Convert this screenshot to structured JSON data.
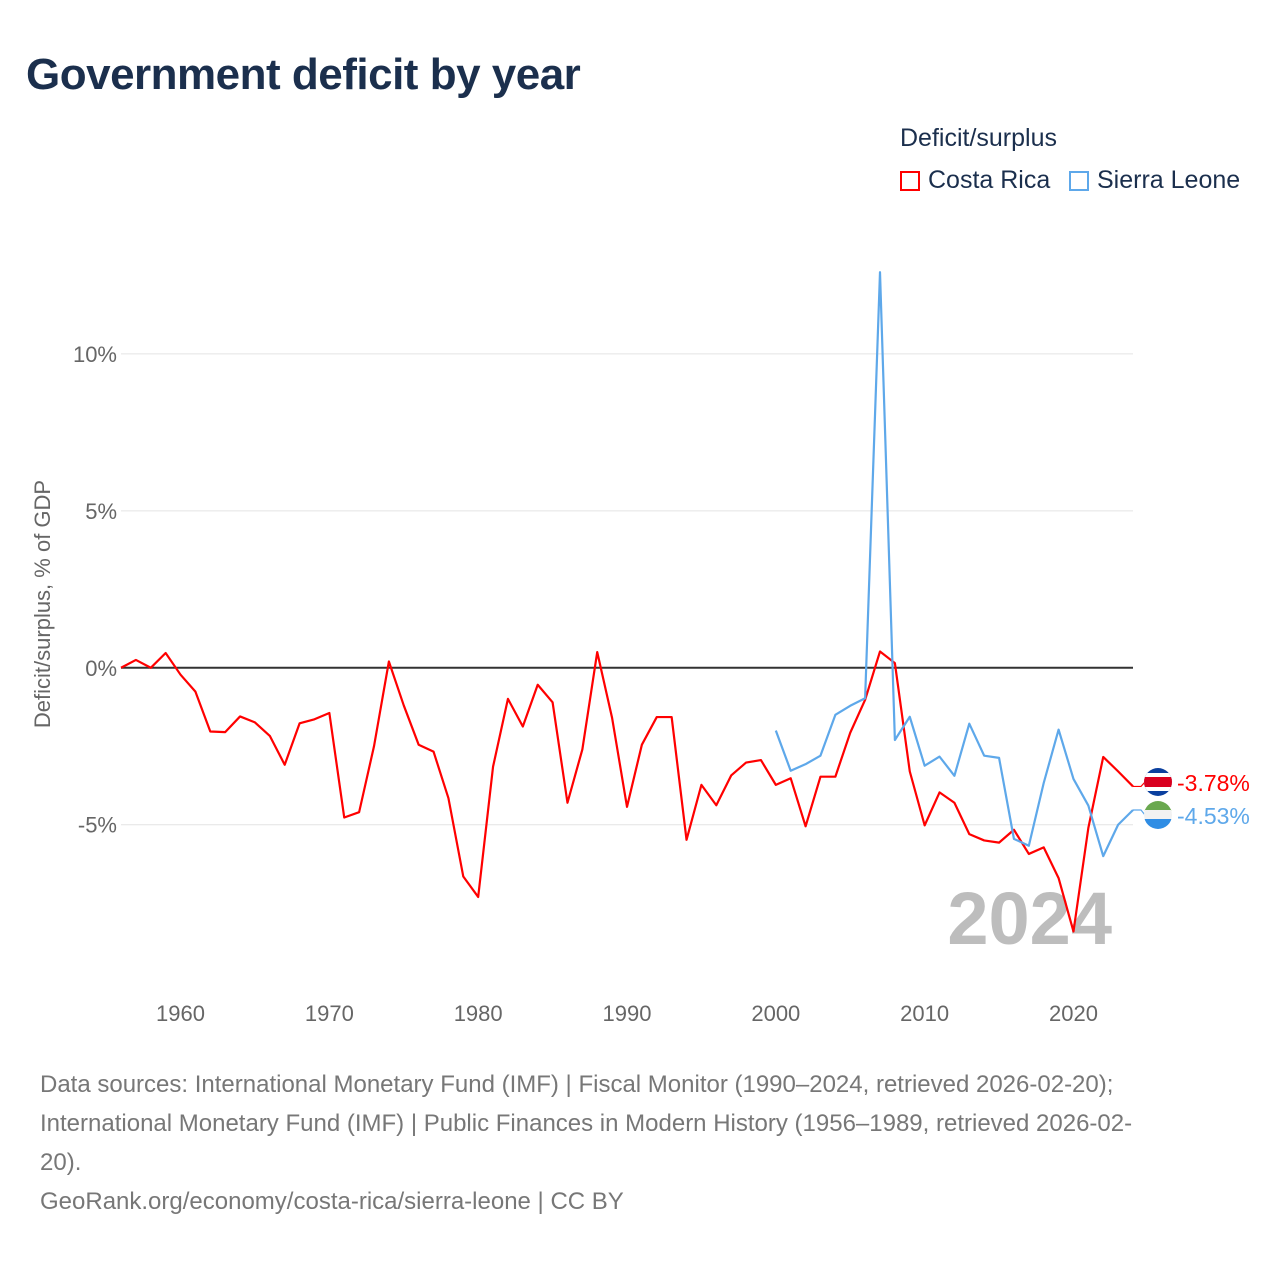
{
  "title": "Government deficit by year",
  "legend": {
    "title": "Deficit/surplus"
  },
  "chart_data": {
    "type": "line",
    "title": "Government deficit by year",
    "ylabel": "Deficit/surplus, % of GDP",
    "xlabel": "",
    "xlim": [
      1956,
      2024
    ],
    "ylim": [
      -9.5,
      13.5
    ],
    "yticks": [
      {
        "v": 10,
        "label": "10%"
      },
      {
        "v": 5,
        "label": "5%"
      },
      {
        "v": 0,
        "label": "0%"
      },
      {
        "v": -5,
        "label": "-5%"
      }
    ],
    "xticks": [
      {
        "v": 1960,
        "label": "1960"
      },
      {
        "v": 1970,
        "label": "1970"
      },
      {
        "v": 1980,
        "label": "1980"
      },
      {
        "v": 1990,
        "label": "1990"
      },
      {
        "v": 2000,
        "label": "2000"
      },
      {
        "v": 2010,
        "label": "2010"
      },
      {
        "v": 2020,
        "label": "2020"
      }
    ],
    "grid": true,
    "legend_position": "top-right",
    "year_watermark": "2024",
    "series": [
      {
        "name": "Costa Rica",
        "color": "#ff0000",
        "end_label": "-3.78%",
        "start_year": 1956,
        "values": [
          0.0,
          0.25,
          0.0,
          0.47,
          -0.22,
          -0.76,
          -2.03,
          -2.05,
          -1.55,
          -1.74,
          -2.17,
          -3.09,
          -1.77,
          -1.64,
          -1.44,
          -4.77,
          -4.6,
          -2.5,
          0.2,
          -1.2,
          -2.45,
          -2.67,
          -4.15,
          -6.65,
          -7.3,
          -3.15,
          -0.99,
          -1.87,
          -0.54,
          -1.1,
          -4.3,
          -2.6,
          0.5,
          -1.6,
          -4.43,
          -2.45,
          -1.57,
          -1.57,
          -5.48,
          -3.73,
          -4.38,
          -3.43,
          -3.02,
          -2.94,
          -3.73,
          -3.52,
          -5.05,
          -3.47,
          -3.47,
          -2.07,
          -1.02,
          0.52,
          0.15,
          -3.3,
          -5.02,
          -3.97,
          -4.3,
          -5.3,
          -5.5,
          -5.57,
          -5.16,
          -5.93,
          -5.72,
          -6.7,
          -8.4,
          -5.1,
          -2.84,
          -3.3,
          -3.78
        ]
      },
      {
        "name": "Sierra Leone",
        "color": "#5ea8ea",
        "end_label": "-4.53%",
        "start_year": 2000,
        "values": [
          -2.0,
          -3.28,
          -3.07,
          -2.8,
          -1.5,
          -1.21,
          -0.97,
          12.6,
          -2.3,
          -1.56,
          -3.12,
          -2.83,
          -3.44,
          -1.78,
          -2.8,
          -2.87,
          -5.45,
          -5.67,
          -3.67,
          -1.97,
          -3.54,
          -4.39,
          -6.0,
          -5.0,
          -4.53
        ]
      }
    ]
  },
  "sources": {
    "line1": "Data sources: International Monetary Fund (IMF) | Fiscal Monitor (1990–2024, retrieved 2026-02-20);",
    "line2": "International Monetary Fund (IMF) | Public Finances in Modern History (1956–1989, retrieved 2026-02-",
    "line3": "20).",
    "line4": "GeoRank.org/economy/costa-rica/sierra-leone | CC BY"
  }
}
